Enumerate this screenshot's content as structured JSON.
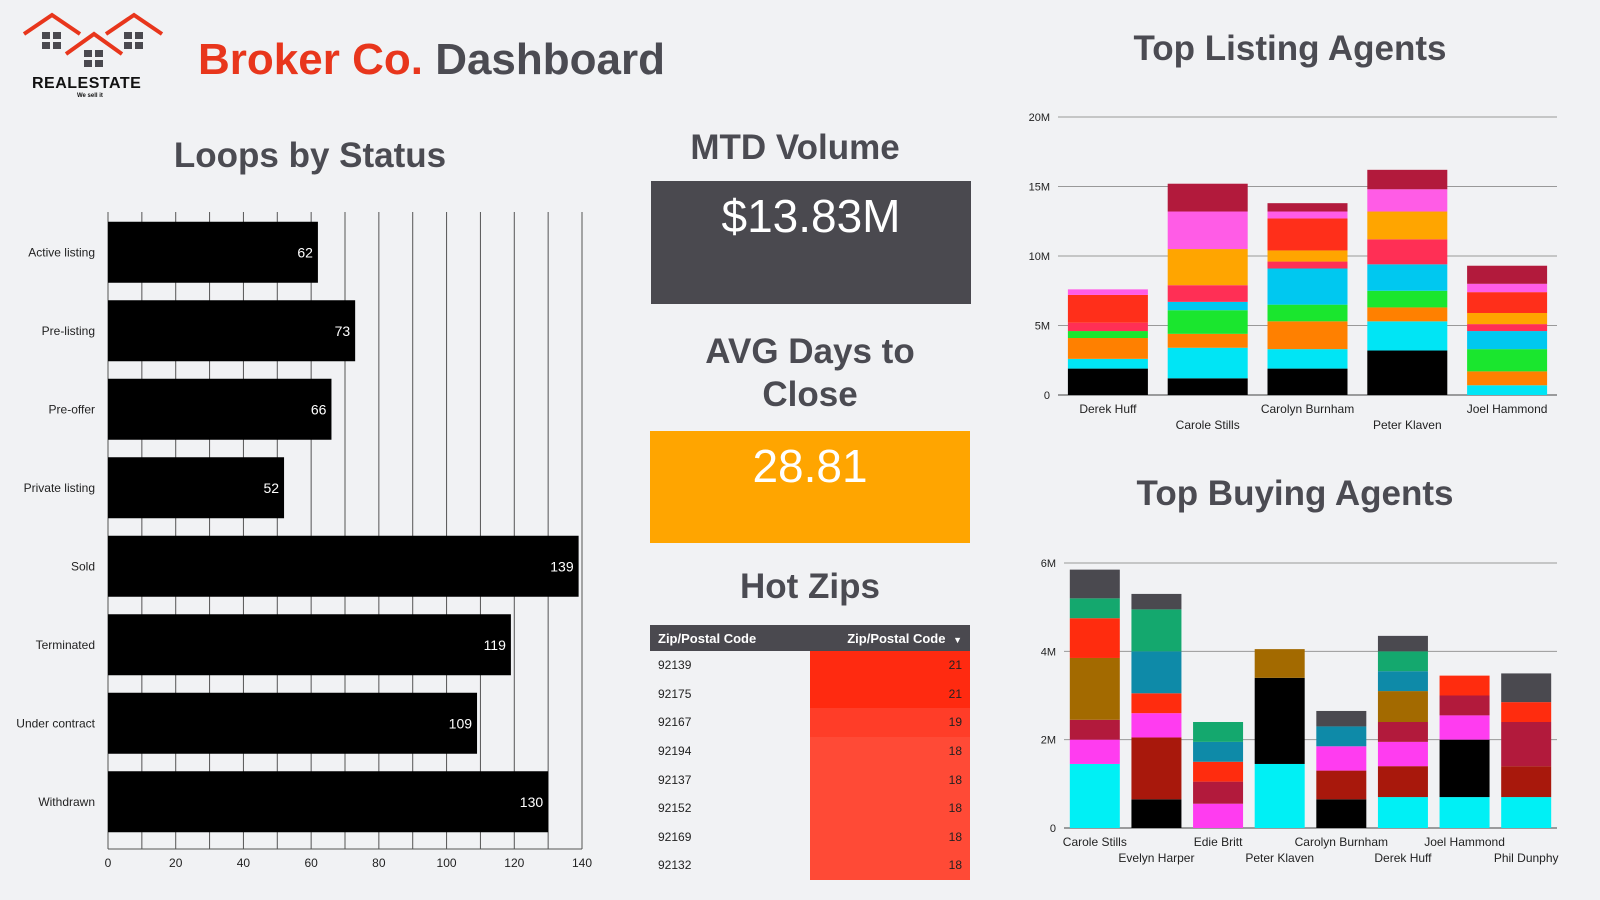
{
  "header": {
    "logo_name": "REALESTATE",
    "logo_tagline": "We sell it",
    "brand": "Broker Co.",
    "title": "Dashboard"
  },
  "colors": {
    "accent": "#e8361c",
    "bar": "#000000",
    "kpi_volume_bg": "#4a494f",
    "kpi_days_bg": "#ffa500",
    "grid": "#555555"
  },
  "loops": {
    "title": "Loops by Status"
  },
  "mtd": {
    "title": "MTD Volume",
    "value": "$13.83M"
  },
  "avg_days": {
    "title_line1": "AVG Days to",
    "title_line2": "Close",
    "value": "28.81"
  },
  "hot_zips": {
    "title": "Hot Zips",
    "col1": "Zip/Postal Code",
    "col2": "Zip/Postal Code",
    "sort_icon": "sort-desc-icon",
    "rows": [
      {
        "zip": "92139",
        "count": "21",
        "color": "#ff2a10"
      },
      {
        "zip": "92175",
        "count": "21",
        "color": "#ff2a10"
      },
      {
        "zip": "92167",
        "count": "19",
        "color": "#ff3d28"
      },
      {
        "zip": "92194",
        "count": "18",
        "color": "#ff4a36"
      },
      {
        "zip": "92137",
        "count": "18",
        "color": "#ff4a36"
      },
      {
        "zip": "92152",
        "count": "18",
        "color": "#ff4a36"
      },
      {
        "zip": "92169",
        "count": "18",
        "color": "#ff4a36"
      },
      {
        "zip": "92132",
        "count": "18",
        "color": "#ff4a36"
      }
    ]
  },
  "listing": {
    "title": "Top Listing Agents"
  },
  "buying": {
    "title": "Top Buying Agents"
  },
  "chart_data": [
    {
      "id": "loops",
      "type": "bar",
      "orientation": "horizontal",
      "title": "Loops by Status",
      "categories": [
        "Active listing",
        "Pre-listing",
        "Pre-offer",
        "Private listing",
        "Sold",
        "Terminated",
        "Under contract",
        "Withdrawn"
      ],
      "values": [
        62,
        73,
        66,
        52,
        139,
        119,
        109,
        130
      ],
      "xlim": [
        0,
        140
      ],
      "xticks": [
        0,
        20,
        40,
        60,
        80,
        100,
        120,
        140
      ],
      "grid": true
    },
    {
      "id": "listing",
      "type": "bar",
      "stacked": true,
      "title": "Top Listing Agents",
      "categories": [
        "Derek Huff",
        "Carole Stills",
        "Carolyn Burnham",
        "Peter Klaven",
        "Joel Hammond"
      ],
      "ylim": [
        0,
        20
      ],
      "yticks": [
        0,
        5,
        10,
        15,
        20
      ],
      "ytick_labels": [
        "0",
        "5M",
        "10M",
        "15M",
        "20M"
      ],
      "unit": "M",
      "stacks": [
        [
          {
            "v": 1.9,
            "c": "#000000"
          },
          {
            "v": 0.7,
            "c": "#00e5f5"
          },
          {
            "v": 1.5,
            "c": "#ff8000"
          },
          {
            "v": 0.5,
            "c": "#1ae62e"
          },
          {
            "v": 0.6,
            "c": "#ff2f55"
          },
          {
            "v": 2.0,
            "c": "#ff2f1a"
          },
          {
            "v": 0.4,
            "c": "#ff5ce6"
          }
        ],
        [
          {
            "v": 1.2,
            "c": "#000000"
          },
          {
            "v": 2.2,
            "c": "#00e5f5"
          },
          {
            "v": 1.0,
            "c": "#ff8000"
          },
          {
            "v": 1.7,
            "c": "#1ae62e"
          },
          {
            "v": 0.6,
            "c": "#00c8f0"
          },
          {
            "v": 1.2,
            "c": "#ff2f55"
          },
          {
            "v": 2.6,
            "c": "#ffa500"
          },
          {
            "v": 2.7,
            "c": "#ff5ce6"
          },
          {
            "v": 2.0,
            "c": "#b21a3c"
          }
        ],
        [
          {
            "v": 1.9,
            "c": "#000000"
          },
          {
            "v": 1.4,
            "c": "#00e5f5"
          },
          {
            "v": 2.0,
            "c": "#ff8000"
          },
          {
            "v": 1.2,
            "c": "#1ae62e"
          },
          {
            "v": 2.6,
            "c": "#00c8f0"
          },
          {
            "v": 0.5,
            "c": "#ff2f55"
          },
          {
            "v": 0.8,
            "c": "#ffa500"
          },
          {
            "v": 2.3,
            "c": "#ff2f1a"
          },
          {
            "v": 0.5,
            "c": "#ff5ce6"
          },
          {
            "v": 0.6,
            "c": "#b21a3c"
          }
        ],
        [
          {
            "v": 3.2,
            "c": "#000000"
          },
          {
            "v": 2.1,
            "c": "#00e5f5"
          },
          {
            "v": 1.0,
            "c": "#ff8000"
          },
          {
            "v": 1.2,
            "c": "#1ae62e"
          },
          {
            "v": 1.9,
            "c": "#00c8f0"
          },
          {
            "v": 1.8,
            "c": "#ff2f55"
          },
          {
            "v": 2.0,
            "c": "#ffa500"
          },
          {
            "v": 1.6,
            "c": "#ff5ce6"
          },
          {
            "v": 1.4,
            "c": "#b21a3c"
          }
        ],
        [
          {
            "v": 0.7,
            "c": "#00e5f5"
          },
          {
            "v": 1.0,
            "c": "#ff8000"
          },
          {
            "v": 1.6,
            "c": "#1ae62e"
          },
          {
            "v": 1.3,
            "c": "#00c8f0"
          },
          {
            "v": 0.5,
            "c": "#ff2f55"
          },
          {
            "v": 0.8,
            "c": "#ffa500"
          },
          {
            "v": 1.5,
            "c": "#ff2f1a"
          },
          {
            "v": 0.6,
            "c": "#ff5ce6"
          },
          {
            "v": 1.3,
            "c": "#b21a3c"
          }
        ]
      ]
    },
    {
      "id": "buying",
      "type": "bar",
      "stacked": true,
      "title": "Top Buying Agents",
      "categories": [
        "Carole Stills",
        "Evelyn Harper",
        "Edie Britt",
        "Peter Klaven",
        "Carolyn Burnham",
        "Derek Huff",
        "Joel Hammond",
        "Phil Dunphy"
      ],
      "ylim": [
        0,
        6
      ],
      "yticks": [
        0,
        2,
        4,
        6
      ],
      "ytick_labels": [
        "0",
        "2M",
        "4M",
        "6M"
      ],
      "unit": "M",
      "stacks": [
        [
          {
            "v": 1.45,
            "c": "#00f0f5"
          },
          {
            "v": 0.55,
            "c": "#ff3cf0"
          },
          {
            "v": 0.45,
            "c": "#b21a3c"
          },
          {
            "v": 1.4,
            "c": "#a36a00"
          },
          {
            "v": 0.9,
            "c": "#ff2c0e"
          },
          {
            "v": 0.45,
            "c": "#14a86e"
          },
          {
            "v": 0.65,
            "c": "#4a494f"
          }
        ],
        [
          {
            "v": 0.65,
            "c": "#000000"
          },
          {
            "v": 1.4,
            "c": "#a8180c"
          },
          {
            "v": 0.55,
            "c": "#ff3cf0"
          },
          {
            "v": 0.45,
            "c": "#ff2c0e"
          },
          {
            "v": 0.95,
            "c": "#0e8aa8"
          },
          {
            "v": 0.95,
            "c": "#14a86e"
          },
          {
            "v": 0.35,
            "c": "#4a494f"
          }
        ],
        [
          {
            "v": 0.55,
            "c": "#ff3cf0"
          },
          {
            "v": 0.5,
            "c": "#b21a3c"
          },
          {
            "v": 0.45,
            "c": "#ff2c0e"
          },
          {
            "v": 0.45,
            "c": "#0e8aa8"
          },
          {
            "v": 0.45,
            "c": "#14a86e"
          }
        ],
        [
          {
            "v": 1.45,
            "c": "#00f0f5"
          },
          {
            "v": 1.95,
            "c": "#000000"
          },
          {
            "v": 0.65,
            "c": "#a36a00"
          }
        ],
        [
          {
            "v": 0.65,
            "c": "#000000"
          },
          {
            "v": 0.65,
            "c": "#a8180c"
          },
          {
            "v": 0.55,
            "c": "#ff3cf0"
          },
          {
            "v": 0.45,
            "c": "#0e8aa8"
          },
          {
            "v": 0.35,
            "c": "#4a494f"
          }
        ],
        [
          {
            "v": 0.7,
            "c": "#00f0f5"
          },
          {
            "v": 0.7,
            "c": "#a8180c"
          },
          {
            "v": 0.55,
            "c": "#ff3cf0"
          },
          {
            "v": 0.45,
            "c": "#b21a3c"
          },
          {
            "v": 0.7,
            "c": "#a36a00"
          },
          {
            "v": 0.45,
            "c": "#0e8aa8"
          },
          {
            "v": 0.45,
            "c": "#14a86e"
          },
          {
            "v": 0.35,
            "c": "#4a494f"
          }
        ],
        [
          {
            "v": 0.7,
            "c": "#00f0f5"
          },
          {
            "v": 1.3,
            "c": "#000000"
          },
          {
            "v": 0.55,
            "c": "#ff3cf0"
          },
          {
            "v": 0.45,
            "c": "#b21a3c"
          },
          {
            "v": 0.45,
            "c": "#ff2c0e"
          }
        ],
        [
          {
            "v": 0.7,
            "c": "#00f0f5"
          },
          {
            "v": 0.7,
            "c": "#a8180c"
          },
          {
            "v": 1.0,
            "c": "#b21a3c"
          },
          {
            "v": 0.45,
            "c": "#ff2c0e"
          },
          {
            "v": 0.65,
            "c": "#4a494f"
          }
        ]
      ]
    }
  ]
}
